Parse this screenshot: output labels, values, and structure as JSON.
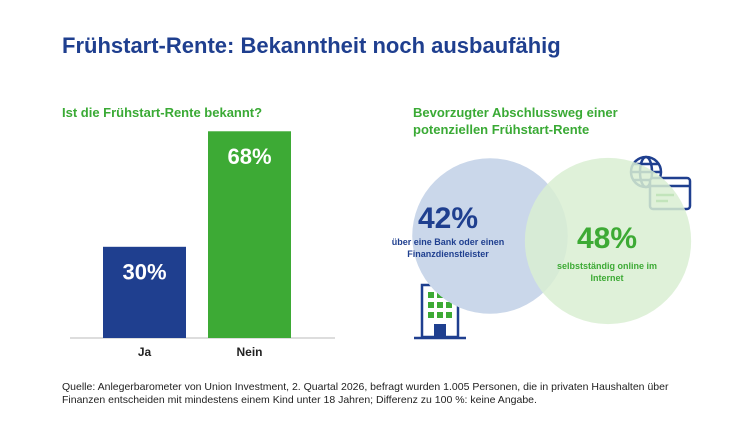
{
  "title": "Frühstart-Rente: Bekanntheit noch ausbaufähig",
  "chart_data": [
    {
      "type": "bar",
      "title": "Ist die Frühstart-Rente bekannt?",
      "categories": [
        "Ja",
        "Nein"
      ],
      "values": [
        30,
        68
      ],
      "value_labels": [
        "30%",
        "68%"
      ],
      "colors": [
        "#1f3f8f",
        "#3daa35"
      ]
    },
    {
      "type": "bubble",
      "title": "Bevorzugter Abschlussweg einer potenziellen Frühstart-Rente",
      "categories": [
        "über eine Bank oder einen Finanzdienstleister",
        "selbstständig online im Internet"
      ],
      "values": [
        42,
        48
      ],
      "value_labels": [
        "42%",
        "48%"
      ],
      "colors": [
        "#1f3f8f",
        "#3daa35"
      ],
      "fills": [
        "#cad7ea",
        "#d9eed2"
      ]
    }
  ],
  "source": "Quelle: Anlegerbarometer von Union Investment, 2. Quartal 2026, befragt wurden 1.005 Personen, die in privaten Haushalten über Finanzen entscheiden mit mindestens einem Kind unter 18 Jahren; Differenz zu 100 %: keine Angabe."
}
